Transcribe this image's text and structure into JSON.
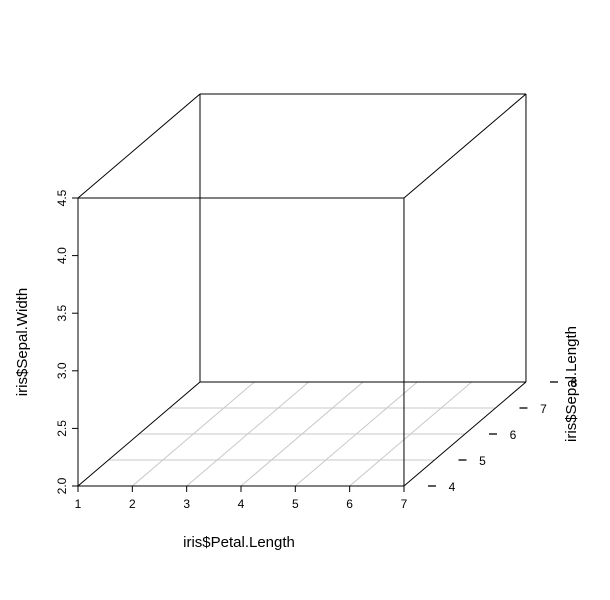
{
  "chart_data": {
    "type": "scatter3d",
    "title": "",
    "x": {
      "label": "iris$Petal.Length",
      "range": [
        1,
        7
      ],
      "ticks": [
        "1",
        "2",
        "3",
        "4",
        "5",
        "6",
        "7"
      ]
    },
    "y": {
      "label": "iris$Sepal.Length",
      "range": [
        4,
        8
      ],
      "ticks": [
        "4",
        "5",
        "6",
        "7",
        "8"
      ]
    },
    "z": {
      "label": "iris$Sepal.Width",
      "range": [
        2.0,
        4.5
      ],
      "ticks": [
        "2.0",
        "2.5",
        "3.0",
        "3.5",
        "4.0",
        "4.5"
      ]
    },
    "grid": true,
    "box": true,
    "points": []
  }
}
